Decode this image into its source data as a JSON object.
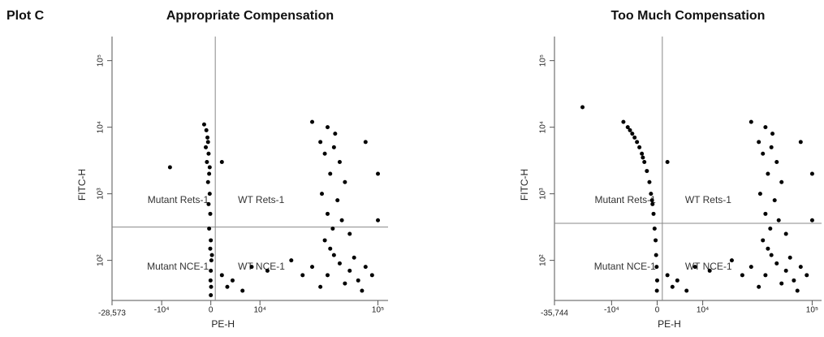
{
  "page_title": "Plot C",
  "chart_data": [
    {
      "type": "scatter",
      "title": "Appropriate Compensation",
      "x_label": "PE-H",
      "y_label": "FITC-H",
      "xscale": "logicle",
      "yscale": "log",
      "color": "#000000",
      "xlim": [
        -28573,
        120000
      ],
      "ylim": [
        25,
        230000
      ],
      "xticks": [
        {
          "value": -28573,
          "label": "-28,573"
        },
        {
          "value": -10000,
          "label": "-10⁴"
        },
        0,
        {
          "value": 10000,
          "label": "10⁴"
        },
        {
          "value": 100000,
          "label": "10⁵"
        }
      ],
      "yticks": [
        {
          "value": 100,
          "label": "10²"
        },
        {
          "value": 1000,
          "label": "10³"
        },
        {
          "value": 10000,
          "label": "10⁴"
        },
        {
          "value": 100000,
          "label": "10⁵"
        }
      ],
      "quadrant_gate": {
        "x": 800,
        "y": 316
      },
      "quadrant_labels": [
        "Mutant Rets-1",
        "WT Rets-1",
        "Mutant NCE-1",
        "WT NCE-1"
      ],
      "x": [
        -800,
        -600,
        -900,
        -400,
        -700,
        -300,
        -500,
        -200,
        -400,
        -100,
        -300,
        0,
        -100,
        100,
        0,
        -50,
        50,
        0,
        -1200,
        -500,
        -200,
        200,
        40000,
        35000,
        45000,
        50000,
        38000,
        42000,
        55000,
        36000,
        48000,
        40000,
        52000,
        44000,
        38000,
        60000,
        30000,
        46000,
        20000,
        30000,
        40000,
        50000,
        60000,
        70000,
        80000,
        35000,
        45000,
        55000,
        65000,
        25000,
        90000,
        42000,
        75000,
        2000,
        4000,
        8000,
        3000,
        12000,
        6000,
        100000,
        80000,
        100000,
        -8000,
        2000
      ],
      "y": [
        9000,
        7000,
        5000,
        4000,
        3000,
        2000,
        1500,
        1000,
        700,
        500,
        300,
        200,
        150,
        100,
        70,
        50,
        40,
        30,
        11000,
        6000,
        2500,
        120,
        10000,
        6000,
        5000,
        3000,
        4000,
        2000,
        1500,
        1000,
        800,
        500,
        400,
        300,
        200,
        250,
        12000,
        8000,
        100,
        80,
        60,
        90,
        70,
        50,
        80,
        40,
        120,
        45,
        110,
        60,
        60,
        150,
        35,
        60,
        50,
        80,
        40,
        70,
        35,
        2000,
        6000,
        400,
        2500,
        3000
      ]
    },
    {
      "type": "scatter",
      "title": "Too Much Compensation",
      "x_label": "PE-H",
      "y_label": "FITC-H",
      "xscale": "logicle",
      "yscale": "log",
      "color": "#000000",
      "xlim": [
        -35744,
        120000
      ],
      "ylim": [
        25,
        230000
      ],
      "xticks": [
        {
          "value": -35744,
          "label": "-35,744"
        },
        {
          "value": -10000,
          "label": "-10⁴"
        },
        0,
        {
          "value": 10000,
          "label": "10⁴"
        },
        {
          "value": 100000,
          "label": "10⁵"
        }
      ],
      "yticks": [
        {
          "value": 100,
          "label": "10²"
        },
        {
          "value": 1000,
          "label": "10³"
        },
        {
          "value": 10000,
          "label": "10⁴"
        },
        {
          "value": 100000,
          "label": "10⁵"
        }
      ],
      "quadrant_gate": {
        "x": 1000,
        "y": 360
      },
      "quadrant_labels": [
        "Mutant Rets-1",
        "WT Rets-1",
        "Mutant NCE-1",
        "WT NCE-1"
      ],
      "x": [
        -6000,
        -7000,
        -5000,
        -4000,
        -3500,
        -3000,
        -2500,
        -2000,
        -1500,
        -1200,
        -900,
        -700,
        -500,
        -300,
        -200,
        -100,
        0,
        -50,
        -5500,
        -4500,
        -2800,
        -1000,
        40000,
        35000,
        45000,
        50000,
        38000,
        42000,
        55000,
        36000,
        48000,
        40000,
        52000,
        44000,
        38000,
        60000,
        30000,
        46000,
        20000,
        30000,
        40000,
        50000,
        60000,
        70000,
        80000,
        35000,
        45000,
        55000,
        65000,
        25000,
        90000,
        42000,
        75000,
        2000,
        4000,
        8000,
        3000,
        12000,
        6000,
        100000,
        80000,
        100000,
        -20000,
        2000
      ],
      "y": [
        10000,
        12000,
        8000,
        6000,
        5000,
        4000,
        3000,
        2200,
        1500,
        1000,
        700,
        500,
        300,
        200,
        120,
        80,
        50,
        35,
        9000,
        7000,
        3500,
        800,
        10000,
        6000,
        5000,
        3000,
        4000,
        2000,
        1500,
        1000,
        800,
        500,
        400,
        300,
        200,
        250,
        12000,
        8000,
        100,
        80,
        60,
        90,
        70,
        50,
        80,
        40,
        120,
        45,
        110,
        60,
        60,
        150,
        35,
        60,
        50,
        80,
        40,
        70,
        35,
        2000,
        6000,
        400,
        20000,
        3000
      ]
    }
  ]
}
